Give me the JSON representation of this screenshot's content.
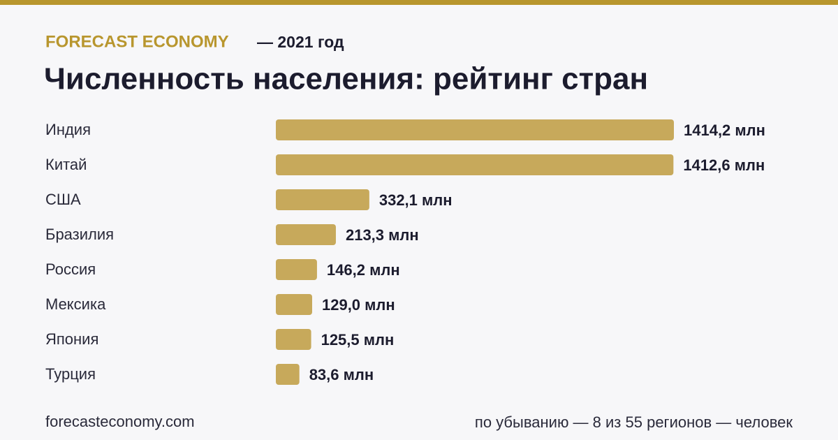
{
  "chart_data": {
    "type": "bar",
    "orientation": "horizontal",
    "brand": "FORECAST ECONOMY",
    "subtitle": "— 2021 год",
    "title": "Численность населения: рейтинг стран",
    "categories": [
      "Индия",
      "Китай",
      "США",
      "Бразилия",
      "Россия",
      "Мексика",
      "Япония",
      "Турция"
    ],
    "values": [
      1414.2,
      1412.6,
      332.1,
      213.3,
      146.2,
      129.0,
      125.5,
      83.6
    ],
    "value_labels": [
      "1414,2 млн",
      "1412,6 млн",
      "332,1 млн",
      "213,3 млн",
      "146,2 млн",
      "129,0 млн",
      "125,5 млн",
      "83,6 млн"
    ],
    "color": "#c7a95b",
    "source": "forecasteconomy.com",
    "note": "по убыванию — 8 из 55 регионов — человек"
  }
}
